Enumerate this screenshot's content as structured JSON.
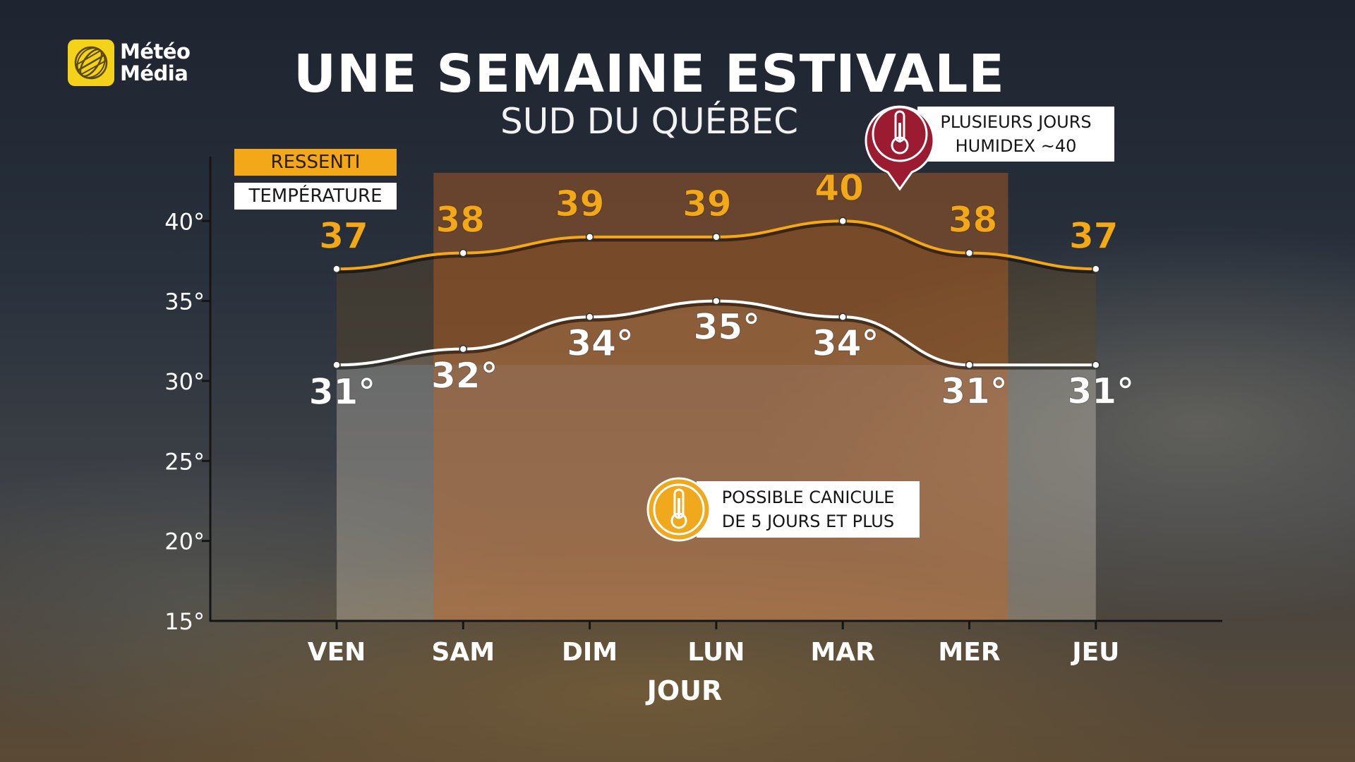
{
  "brand": {
    "line1": "Météo",
    "line2": "Média"
  },
  "title": "UNE SEMAINE ESTIVALE",
  "subtitle": "SUD DU QUÉBEC",
  "legend": {
    "ressenti": "RESSENTI",
    "temperature": "TEMPÉRATURE"
  },
  "callouts": {
    "humidex": {
      "line1": "PLUSIEURS JOURS",
      "line2": "HUMIDEX ~40",
      "icon": "thermometer-icon",
      "color": "#9b1b30"
    },
    "canicule": {
      "line1": "POSSIBLE CANICULE",
      "line2": "DE 5 JOURS ET PLUS",
      "icon": "thermometer-icon",
      "color": "#f0a81c"
    }
  },
  "colors": {
    "ressenti": "#f3a81a",
    "temperature": "#ffffff",
    "axis": "#151515",
    "heat_band": "#c6641e"
  },
  "chart_data": {
    "type": "line",
    "xlabel": "JOUR",
    "ylabel": "",
    "categories": [
      "VEN",
      "SAM",
      "DIM",
      "LUN",
      "MAR",
      "MER",
      "JEU"
    ],
    "ylim": [
      15,
      43
    ],
    "yticks": [
      15,
      20,
      25,
      30,
      35,
      40
    ],
    "ytick_labels": [
      "15°",
      "20°",
      "25°",
      "30°",
      "35°",
      "40°"
    ],
    "series": [
      {
        "name": "RESSENTI",
        "values": [
          37,
          38,
          39,
          39,
          40,
          38,
          37
        ],
        "labels": [
          "37",
          "38",
          "39",
          "39",
          "40",
          "38",
          "37"
        ]
      },
      {
        "name": "TEMPÉRATURE",
        "values": [
          31,
          32,
          34,
          35,
          34,
          31,
          31
        ],
        "labels": [
          "31°",
          "32°",
          "34°",
          "35°",
          "34°",
          "31°",
          "31°"
        ]
      }
    ],
    "highlight_range": [
      "SAM",
      "MER"
    ],
    "grid": false,
    "legend": "top-left"
  }
}
